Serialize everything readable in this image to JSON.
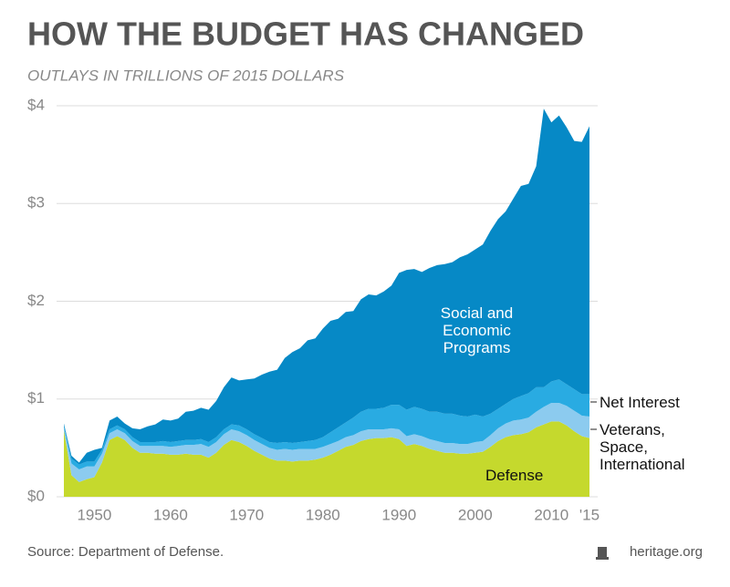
{
  "chart_data": {
    "type": "stacked-area",
    "title": "HOW THE BUDGET HAS CHANGED",
    "subtitle": "OUTLAYS IN TRILLIONS OF 2015 DOLLARS",
    "source": "Source: Department of Defense.",
    "credit": "heritage.org",
    "x": [
      1946,
      1947,
      1948,
      1949,
      1950,
      1951,
      1952,
      1953,
      1954,
      1955,
      1956,
      1957,
      1958,
      1959,
      1960,
      1961,
      1962,
      1963,
      1964,
      1965,
      1966,
      1967,
      1968,
      1969,
      1970,
      1971,
      1972,
      1973,
      1974,
      1975,
      1976,
      1977,
      1978,
      1979,
      1980,
      1981,
      1982,
      1983,
      1984,
      1985,
      1986,
      1987,
      1988,
      1989,
      1990,
      1991,
      1992,
      1993,
      1994,
      1995,
      1996,
      1997,
      1998,
      1999,
      2000,
      2001,
      2002,
      2003,
      2004,
      2005,
      2006,
      2007,
      2008,
      2009,
      2010,
      2011,
      2012,
      2013,
      2014,
      2015
    ],
    "series": [
      {
        "name": "Defense",
        "color": "#c5d92d",
        "values": [
          0.68,
          0.22,
          0.15,
          0.18,
          0.2,
          0.35,
          0.58,
          0.62,
          0.58,
          0.5,
          0.45,
          0.45,
          0.44,
          0.44,
          0.43,
          0.43,
          0.44,
          0.43,
          0.43,
          0.4,
          0.45,
          0.53,
          0.58,
          0.56,
          0.52,
          0.47,
          0.43,
          0.39,
          0.37,
          0.37,
          0.36,
          0.37,
          0.37,
          0.38,
          0.4,
          0.43,
          0.47,
          0.51,
          0.53,
          0.57,
          0.59,
          0.6,
          0.6,
          0.61,
          0.59,
          0.52,
          0.54,
          0.52,
          0.49,
          0.47,
          0.45,
          0.45,
          0.44,
          0.44,
          0.45,
          0.46,
          0.51,
          0.57,
          0.61,
          0.63,
          0.64,
          0.66,
          0.71,
          0.74,
          0.77,
          0.77,
          0.73,
          0.67,
          0.62,
          0.6
        ]
      },
      {
        "name": "Veterans, Space, International",
        "color": "#8ccbef",
        "values": [
          0.03,
          0.12,
          0.13,
          0.13,
          0.11,
          0.09,
          0.07,
          0.07,
          0.07,
          0.07,
          0.07,
          0.07,
          0.08,
          0.08,
          0.08,
          0.09,
          0.09,
          0.1,
          0.11,
          0.11,
          0.11,
          0.11,
          0.11,
          0.11,
          0.11,
          0.11,
          0.11,
          0.11,
          0.11,
          0.12,
          0.12,
          0.12,
          0.12,
          0.11,
          0.11,
          0.11,
          0.1,
          0.1,
          0.1,
          0.1,
          0.1,
          0.09,
          0.09,
          0.09,
          0.1,
          0.1,
          0.1,
          0.1,
          0.1,
          0.1,
          0.1,
          0.1,
          0.1,
          0.1,
          0.11,
          0.11,
          0.12,
          0.13,
          0.14,
          0.15,
          0.15,
          0.15,
          0.16,
          0.18,
          0.19,
          0.19,
          0.2,
          0.21,
          0.21,
          0.22
        ]
      },
      {
        "name": "Net Interest",
        "color": "#29abe2",
        "values": [
          0.02,
          0.05,
          0.05,
          0.05,
          0.05,
          0.04,
          0.04,
          0.04,
          0.04,
          0.04,
          0.04,
          0.04,
          0.04,
          0.05,
          0.05,
          0.05,
          0.05,
          0.05,
          0.05,
          0.05,
          0.05,
          0.05,
          0.05,
          0.06,
          0.06,
          0.06,
          0.06,
          0.06,
          0.07,
          0.07,
          0.07,
          0.07,
          0.08,
          0.09,
          0.1,
          0.12,
          0.14,
          0.15,
          0.18,
          0.2,
          0.21,
          0.21,
          0.22,
          0.24,
          0.25,
          0.27,
          0.28,
          0.28,
          0.28,
          0.3,
          0.3,
          0.3,
          0.29,
          0.28,
          0.28,
          0.25,
          0.22,
          0.2,
          0.2,
          0.22,
          0.24,
          0.25,
          0.25,
          0.2,
          0.22,
          0.24,
          0.22,
          0.22,
          0.22,
          0.23
        ]
      },
      {
        "name": "Social and Economic Programs",
        "color": "#0689c6",
        "values": [
          0.02,
          0.03,
          0.02,
          0.09,
          0.12,
          0.02,
          0.09,
          0.09,
          0.06,
          0.09,
          0.13,
          0.16,
          0.18,
          0.22,
          0.22,
          0.23,
          0.29,
          0.3,
          0.32,
          0.33,
          0.37,
          0.43,
          0.48,
          0.46,
          0.51,
          0.57,
          0.65,
          0.72,
          0.75,
          0.86,
          0.93,
          0.96,
          1.03,
          1.04,
          1.11,
          1.14,
          1.11,
          1.13,
          1.09,
          1.15,
          1.17,
          1.16,
          1.19,
          1.22,
          1.35,
          1.43,
          1.41,
          1.4,
          1.47,
          1.5,
          1.53,
          1.55,
          1.62,
          1.66,
          1.69,
          1.76,
          1.87,
          1.94,
          1.97,
          2.05,
          2.15,
          2.14,
          2.26,
          2.85,
          2.65,
          2.7,
          2.63,
          2.54,
          2.58,
          2.74
        ]
      }
    ],
    "xlim": [
      1946,
      2015
    ],
    "xticks": [
      1950,
      1960,
      1970,
      1980,
      1990,
      2000,
      2010,
      {
        "value": 2015,
        "label": "'15"
      }
    ],
    "ylim": [
      0,
      4
    ],
    "yticks": [
      {
        "value": 0,
        "label": "$0"
      },
      {
        "value": 1,
        "label": "$1"
      },
      {
        "value": 2,
        "label": "$2"
      },
      {
        "value": 3,
        "label": "$3"
      },
      {
        "value": 4,
        "label": "$4"
      }
    ],
    "grid": true
  }
}
